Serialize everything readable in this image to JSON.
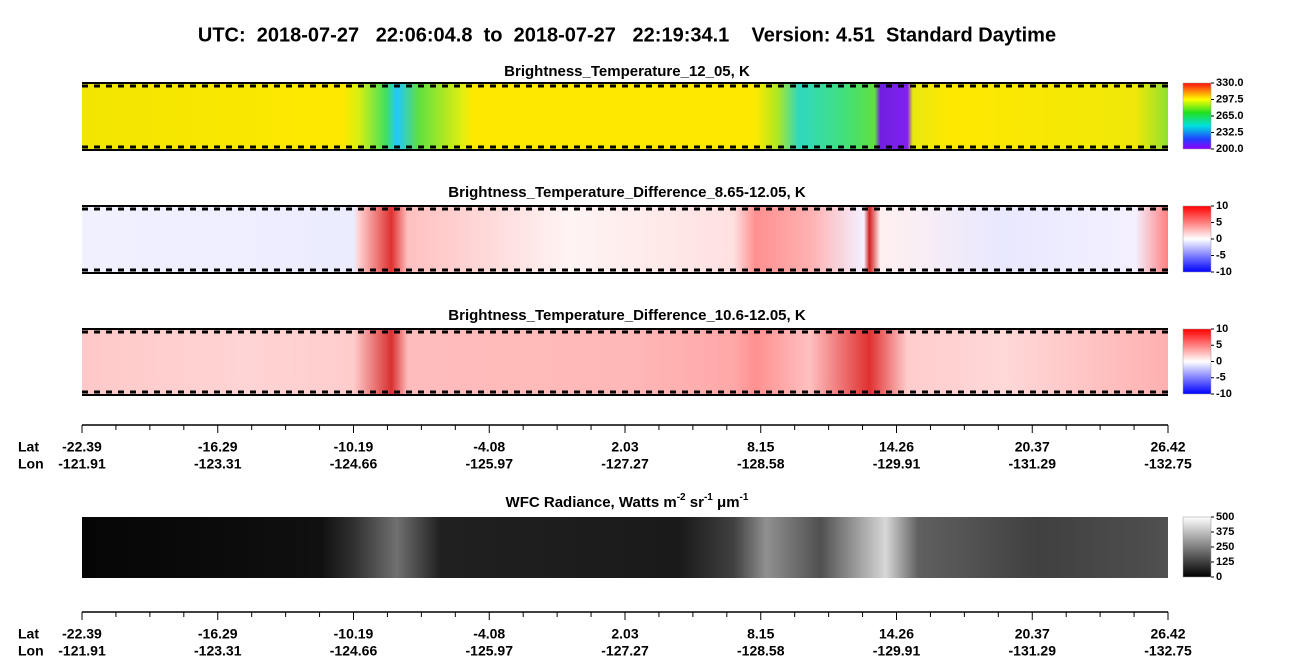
{
  "header": {
    "title": "UTC:  2018-07-27   22:06:04.8  to  2018-07-27   22:19:34.1    Version: 4.51  Standard Daytime"
  },
  "panels": [
    {
      "title": "Brightness_Temperature_12_05, K",
      "colorbar": {
        "lim": [
          200,
          330
        ],
        "ticks": [
          {
            "value": 330,
            "label": "330.0"
          },
          {
            "value": 297.5,
            "label": "297.5"
          },
          {
            "value": 265,
            "label": "265.0"
          },
          {
            "value": 232.5,
            "label": "232.5"
          },
          {
            "value": 200,
            "label": "200.0"
          }
        ]
      }
    },
    {
      "title": "Brightness_Temperature_Difference_8.65-12.05, K",
      "colorbar": {
        "lim": [
          -10,
          10
        ],
        "ticks": [
          10,
          5,
          0,
          -5,
          -10
        ]
      }
    },
    {
      "title": "Brightness_Temperature_Difference_10.6-12.05, K",
      "colorbar": {
        "lim": [
          -10,
          10
        ],
        "ticks": [
          10,
          5,
          0,
          -5,
          -10
        ]
      }
    },
    {
      "title_parts": [
        {
          "text": "WFC Radiance, Watts m"
        },
        {
          "text": "-2",
          "sup": true
        },
        {
          "text": " sr"
        },
        {
          "text": "-1",
          "sup": true
        },
        {
          "text": " μm"
        },
        {
          "text": "-1",
          "sup": true
        }
      ],
      "colorbar": {
        "lim": [
          0,
          500
        ],
        "ticks": [
          500,
          375,
          250,
          125,
          0
        ]
      }
    }
  ],
  "axes": [
    {
      "lat_label": "Lat",
      "lon_label": "Lon",
      "lat": [
        -22.39,
        -16.29,
        -10.19,
        -4.08,
        2.03,
        8.15,
        14.26,
        20.37,
        26.42
      ],
      "lon": [
        -121.91,
        -123.31,
        -124.66,
        -125.97,
        -127.27,
        -128.58,
        -129.91,
        -131.29,
        -132.75
      ]
    },
    {
      "lat_label": "Lat",
      "lon_label": "Lon",
      "lat": [
        -22.39,
        -16.29,
        -10.19,
        -4.08,
        2.03,
        8.15,
        14.26,
        20.37,
        26.42
      ],
      "lon": [
        -121.91,
        -123.31,
        -124.66,
        -125.97,
        -127.27,
        -128.58,
        -129.91,
        -131.29,
        -132.75
      ]
    }
  ]
}
